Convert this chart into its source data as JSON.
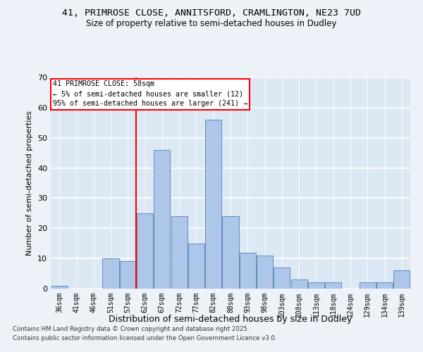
{
  "title1": "41, PRIMROSE CLOSE, ANNITSFORD, CRAMLINGTON, NE23 7UD",
  "title2": "Size of property relative to semi-detached houses in Dudley",
  "xlabel": "Distribution of semi-detached houses by size in Dudley",
  "ylabel": "Number of semi-detached properties",
  "categories": [
    "36sqm",
    "41sqm",
    "46sqm",
    "51sqm",
    "57sqm",
    "62sqm",
    "67sqm",
    "72sqm",
    "77sqm",
    "82sqm",
    "88sqm",
    "93sqm",
    "98sqm",
    "103sqm",
    "108sqm",
    "113sqm",
    "118sqm",
    "124sqm",
    "129sqm",
    "134sqm",
    "139sqm"
  ],
  "values": [
    1,
    0,
    0,
    10,
    9,
    25,
    46,
    24,
    15,
    56,
    24,
    12,
    11,
    7,
    3,
    2,
    2,
    0,
    2,
    2,
    6
  ],
  "bar_color": "#aec6e8",
  "bar_edge_color": "#5a8fc0",
  "background_color": "#dde8f5",
  "fig_background_color": "#edf2f9",
  "red_line_index": 4.5,
  "annotation_title": "41 PRIMROSE CLOSE: 58sqm",
  "annotation_line1": "← 5% of semi-detached houses are smaller (12)",
  "annotation_line2": "95% of semi-detached houses are larger (241) →",
  "footer1": "Contains HM Land Registry data © Crown copyright and database right 2025.",
  "footer2": "Contains public sector information licensed under the Open Government Licence v3.0.",
  "ylim": [
    0,
    70
  ],
  "yticks": [
    0,
    10,
    20,
    30,
    40,
    50,
    60,
    70
  ]
}
